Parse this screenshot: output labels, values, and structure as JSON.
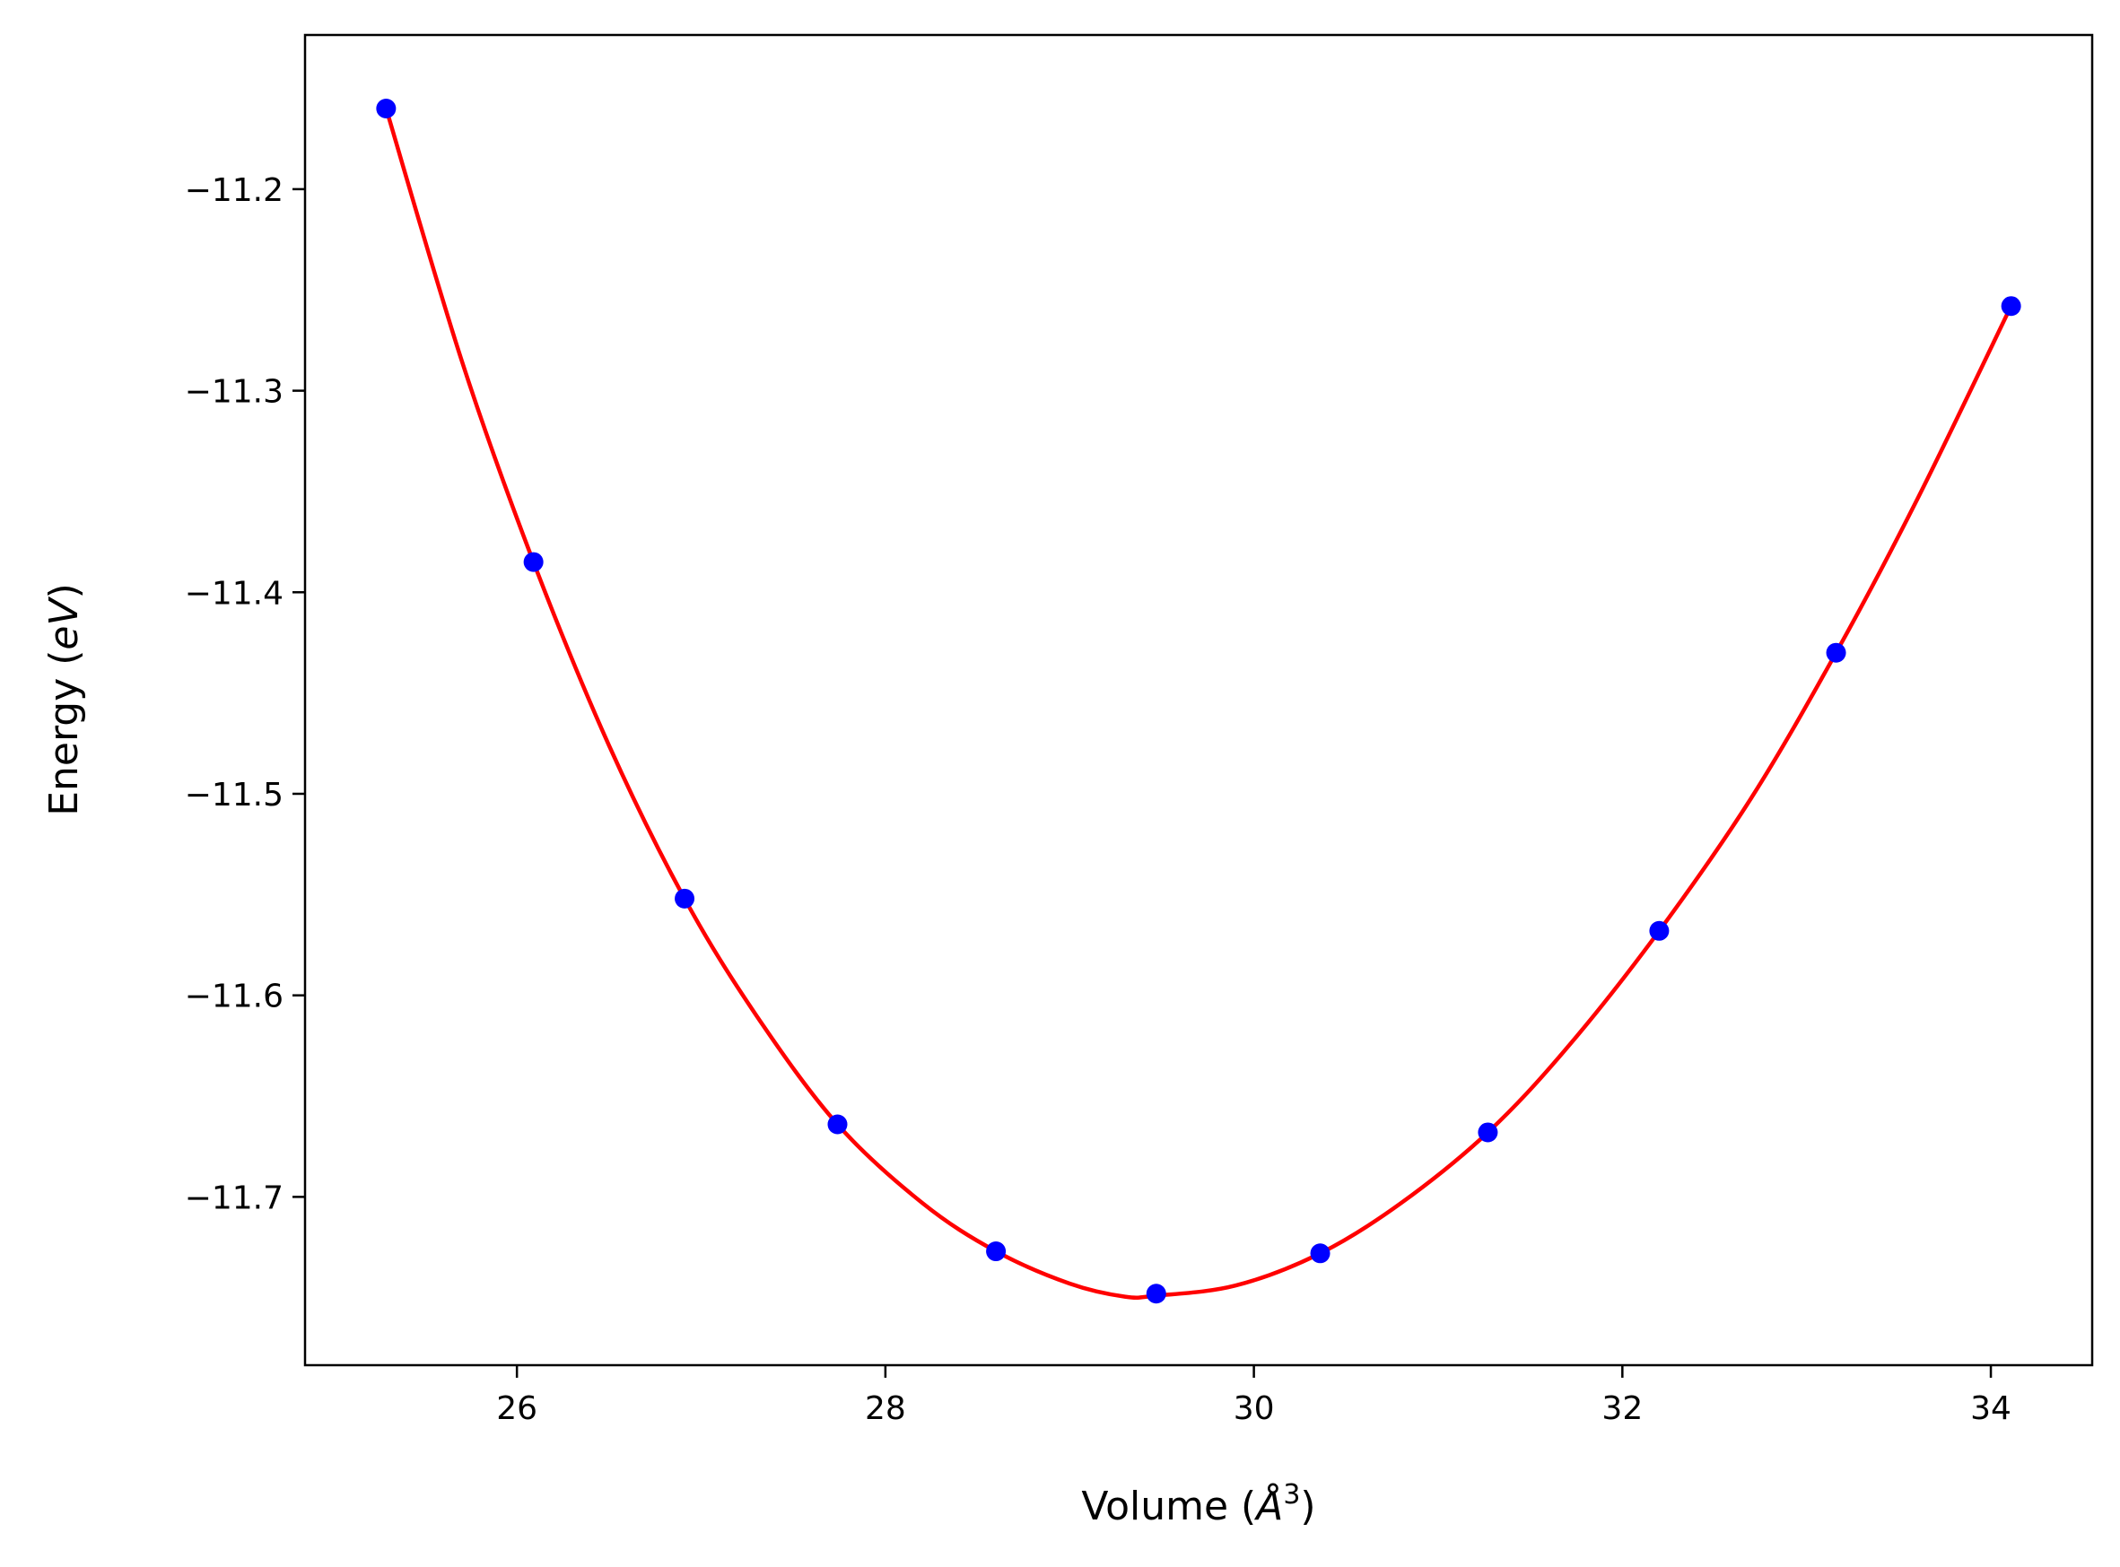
{
  "chart_data": {
    "type": "scatter",
    "title": "",
    "xlabel": "Volume (",
    "xlabel_symbol": "Å",
    "xlabel_power": "3",
    "xlabel_close": ")",
    "ylabel": "Energy (",
    "ylabel_symbol": "eV",
    "ylabel_close": ")",
    "xlim": [
      24.85,
      34.55
    ],
    "ylim": [
      -11.7835,
      -11.1235
    ],
    "xticks": [
      26,
      28,
      30,
      32,
      34
    ],
    "xtick_labels": [
      "26",
      "28",
      "30",
      "32",
      "34"
    ],
    "yticks": [
      -11.2,
      -11.3,
      -11.4,
      -11.5,
      -11.6,
      -11.7
    ],
    "ytick_labels": [
      "−11.2",
      "−11.3",
      "−11.4",
      "−11.5",
      "−11.6",
      "−11.7"
    ],
    "grid": false,
    "legend": "none",
    "series": [
      {
        "kind": "points",
        "color": "#0000ff",
        "x": [
          25.29,
          26.09,
          26.91,
          27.74,
          28.6,
          29.47,
          30.36,
          31.27,
          32.2,
          33.16,
          34.11
        ],
        "y": [
          -11.16,
          -11.385,
          -11.552,
          -11.664,
          -11.727,
          -11.748,
          -11.728,
          -11.668,
          -11.568,
          -11.43,
          -11.258
        ]
      },
      {
        "kind": "fit-curve",
        "color": "#ff0000",
        "x": [
          25.29,
          25.7,
          26.09,
          26.5,
          26.91,
          27.3,
          27.74,
          28.2,
          28.6,
          29.0,
          29.3,
          29.47,
          29.9,
          30.36,
          30.8,
          31.27,
          31.7,
          32.2,
          32.7,
          33.16,
          33.6,
          34.11
        ],
        "y": [
          -11.16,
          -11.285,
          -11.385,
          -11.476,
          -11.552,
          -11.61,
          -11.664,
          -11.703,
          -11.727,
          -11.743,
          -11.7495,
          -11.749,
          -11.744,
          -11.728,
          -11.703,
          -11.668,
          -11.626,
          -11.568,
          -11.502,
          -11.43,
          -11.354,
          -11.258
        ]
      }
    ]
  }
}
